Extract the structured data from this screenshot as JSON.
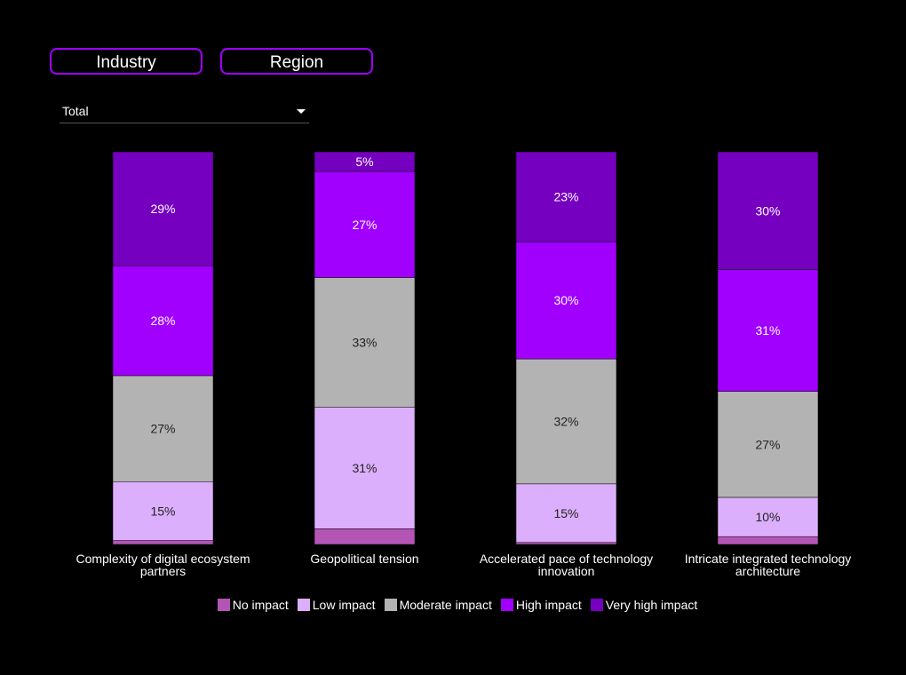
{
  "tabs": [
    {
      "label": "Industry"
    },
    {
      "label": "Region"
    }
  ],
  "dropdown": {
    "selected": "Total"
  },
  "chart_data": {
    "type": "bar",
    "stacked": true,
    "normalized": true,
    "categories": [
      "Complexity of digital ecosystem partners",
      "Geopolitical tension",
      "Accelerated pace of technology innovation",
      "Intricate integrated technology architecture"
    ],
    "category_lines": [
      [
        "Complexity of digital ecosystem",
        "partners"
      ],
      [
        "Geopolitical tension"
      ],
      [
        "Accelerated pace of technology",
        "innovation"
      ],
      [
        "Intricate integrated technology",
        "architecture"
      ]
    ],
    "series": [
      {
        "name": "No impact",
        "color": "#b455b6",
        "values": [
          1,
          4,
          0.5,
          2
        ],
        "labels": [
          "",
          "",
          "",
          ""
        ]
      },
      {
        "name": "Low impact",
        "color": "#dcaffc",
        "values": [
          15,
          31,
          15,
          10
        ],
        "labels": [
          "15%",
          "31%",
          "15%",
          "10%"
        ]
      },
      {
        "name": "Moderate impact",
        "color": "#b3b3b3",
        "values": [
          27,
          33,
          32,
          27
        ],
        "labels": [
          "27%",
          "33%",
          "32%",
          "27%"
        ]
      },
      {
        "name": "High impact",
        "color": "#a100ff",
        "values": [
          28,
          27,
          30,
          31
        ],
        "labels": [
          "28%",
          "27%",
          "30%",
          "31%"
        ]
      },
      {
        "name": "Very high impact",
        "color": "#7500c0",
        "values": [
          29,
          5,
          23,
          30
        ],
        "labels": [
          "29%",
          "5%",
          "23%",
          "30%"
        ]
      }
    ],
    "legend": "bottom",
    "grid": false
  }
}
